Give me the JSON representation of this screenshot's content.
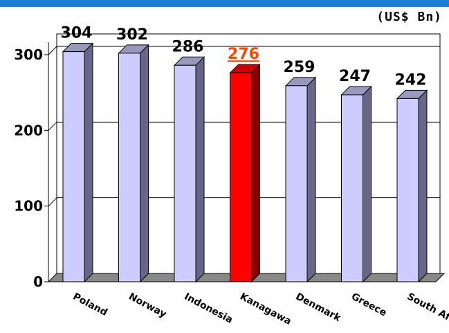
{
  "chart_data": {
    "type": "bar",
    "unit": "(US$ Bn)",
    "categories": [
      "Poland",
      "Norway",
      "Indonesia",
      "Kanagawa",
      "Denmark",
      "Greece",
      "South Africa"
    ],
    "values": [
      304,
      302,
      286,
      276,
      259,
      247,
      242
    ],
    "highlight": "Kanagawa",
    "ylim": [
      0,
      300
    ],
    "yticks": [
      0,
      100,
      200,
      300
    ],
    "grid": true,
    "legend": "none",
    "colors": {
      "bar_front": "#ccccff",
      "bar_side": "#666688",
      "bar_top": "#9999bb",
      "highlight_front": "#ff0000",
      "highlight_side": "#880000",
      "highlight_top": "#cc0000",
      "highlight_label": "#ff4500",
      "header_band": "#1e7fd8"
    }
  }
}
